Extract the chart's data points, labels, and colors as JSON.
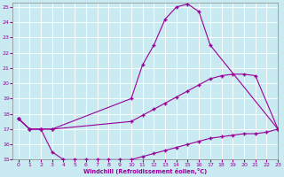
{
  "xlabel": "Windchill (Refroidissement éolien,°C)",
  "bg_color": "#c8eaf0",
  "line_color": "#990099",
  "grid_color": "#ffffff",
  "xlim": [
    -0.5,
    23
  ],
  "ylim": [
    15,
    25.3
  ],
  "yticks": [
    15,
    16,
    17,
    18,
    19,
    20,
    21,
    22,
    23,
    24,
    25
  ],
  "xticks": [
    0,
    1,
    2,
    3,
    4,
    5,
    6,
    7,
    8,
    9,
    10,
    11,
    12,
    13,
    14,
    15,
    16,
    17,
    18,
    19,
    20,
    21,
    22,
    23
  ],
  "line1_x": [
    0,
    1,
    2,
    3,
    10,
    11,
    12,
    13,
    14,
    15,
    16,
    17,
    23
  ],
  "line1_y": [
    17.7,
    17.0,
    17.0,
    17.0,
    19.0,
    21.2,
    22.5,
    24.2,
    25.0,
    25.2,
    24.7,
    22.5,
    17.0
  ],
  "line2_x": [
    0,
    1,
    2,
    3,
    10,
    11,
    12,
    13,
    14,
    15,
    16,
    17,
    18,
    19,
    20,
    21,
    23
  ],
  "line2_y": [
    17.7,
    17.0,
    17.0,
    17.0,
    17.5,
    17.9,
    18.3,
    18.7,
    19.1,
    19.5,
    19.9,
    20.3,
    20.5,
    20.6,
    20.6,
    20.5,
    17.0
  ],
  "line3_x": [
    0,
    1,
    2,
    3,
    4,
    5,
    6,
    7,
    8,
    9,
    10,
    11,
    12,
    13,
    14,
    15,
    16,
    17,
    18,
    19,
    20,
    21,
    22,
    23
  ],
  "line3_y": [
    17.7,
    17.0,
    17.0,
    15.5,
    15.0,
    15.0,
    15.0,
    15.0,
    15.0,
    15.0,
    15.0,
    15.2,
    15.4,
    15.6,
    15.8,
    16.0,
    16.2,
    16.4,
    16.5,
    16.6,
    16.7,
    16.7,
    16.8,
    17.0
  ]
}
